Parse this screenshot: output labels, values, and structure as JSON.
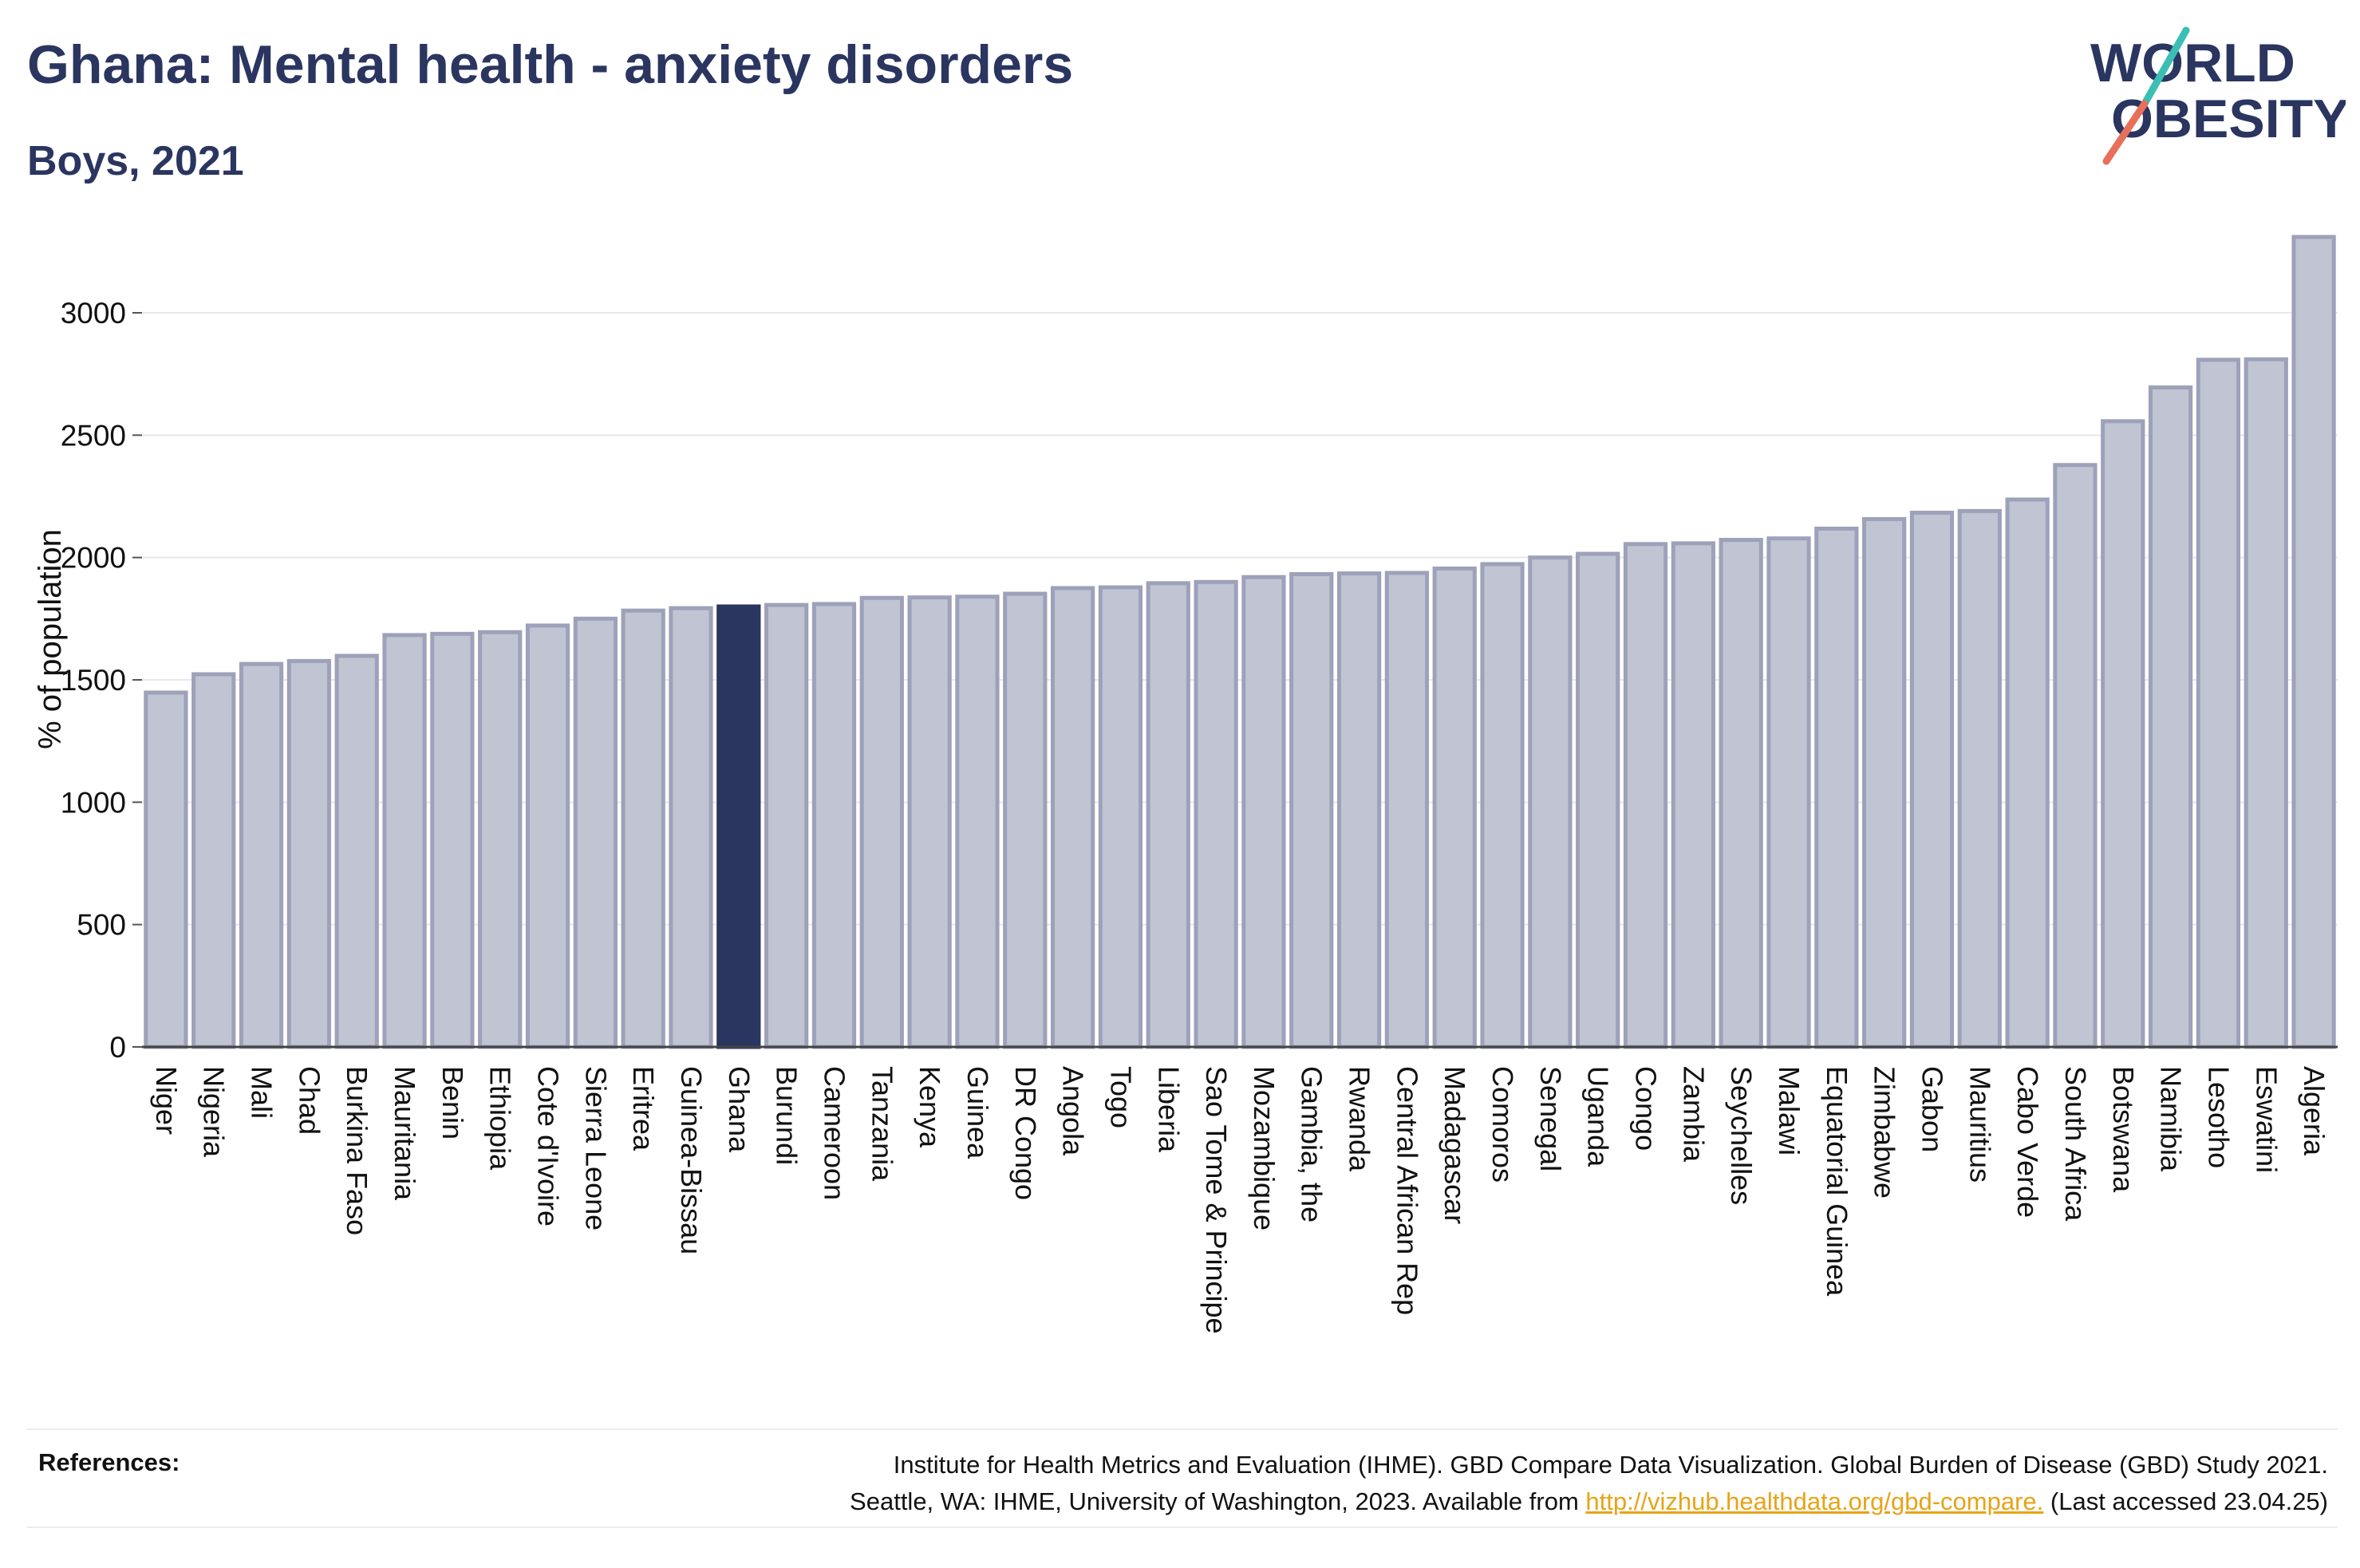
{
  "header": {
    "title": "Ghana: Mental health - anxiety disorders",
    "subtitle": "Boys, 2021"
  },
  "logo": {
    "line1": "WORLD",
    "line2": "OBESITY",
    "slash_colors": [
      "#3bbfb4",
      "#e8705a"
    ]
  },
  "chart_data": {
    "type": "bar",
    "ylabel": "% of population",
    "ylim": [
      0,
      3300
    ],
    "yticks": [
      0,
      500,
      1000,
      1500,
      2000,
      2500,
      3000
    ],
    "grid": true,
    "highlight": "Ghana",
    "colors": {
      "bar": "#c1c4d2",
      "bar_stroke": "#9da1b9",
      "highlight": "#2a3560"
    },
    "categories": [
      "Niger",
      "Nigeria",
      "Mali",
      "Chad",
      "Burkina Faso",
      "Mauritania",
      "Benin",
      "Ethiopia",
      "Cote d'Ivoire",
      "Sierra Leone",
      "Eritrea",
      "Guinea-Bissau",
      "Ghana",
      "Burundi",
      "Cameroon",
      "Tanzania",
      "Kenya",
      "Guinea",
      "DR Congo",
      "Angola",
      "Togo",
      "Liberia",
      "Sao Tome & Principe",
      "Mozambique",
      "Gambia, the",
      "Rwanda",
      "Central African Rep",
      "Madagascar",
      "Comoros",
      "Senegal",
      "Uganda",
      "Congo",
      "Zambia",
      "Seychelles",
      "Malawi",
      "Equatorial Guinea",
      "Zimbabwe",
      "Gabon",
      "Mauritius",
      "Cabo Verde",
      "South Africa",
      "Botswana",
      "Namibia",
      "Lesotho",
      "Eswatini",
      "Algeria"
    ],
    "values": [
      1448,
      1523,
      1565,
      1577,
      1598,
      1683,
      1688,
      1695,
      1722,
      1750,
      1783,
      1793,
      1800,
      1806,
      1810,
      1835,
      1837,
      1840,
      1852,
      1875,
      1878,
      1895,
      1900,
      1920,
      1932,
      1935,
      1937,
      1955,
      1973,
      2000,
      2015,
      2055,
      2058,
      2072,
      2078,
      2118,
      2157,
      2183,
      2190,
      2237,
      2378,
      2557,
      2695,
      2808,
      2810,
      3310
    ]
  },
  "references": {
    "heading": "References:",
    "line1": "Institute for Health Metrics and Evaluation (IHME). GBD Compare Data Visualization. Global Burden of Disease (GBD) Study 2021.",
    "line2_prefix": "Seattle, WA: IHME, University of Washington, 2023. Available from ",
    "link": "http://vizhub.healthdata.org/gbd-compare.",
    "line2_suffix": " (Last accessed 23.04.25)"
  }
}
